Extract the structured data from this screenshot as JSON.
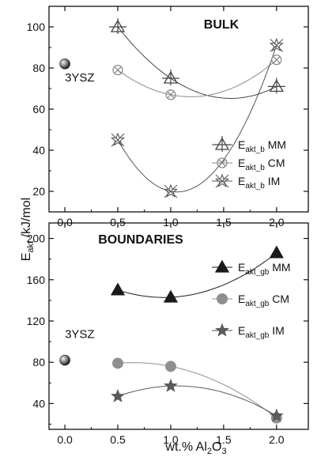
{
  "chart_data": [
    {
      "type": "line",
      "title": "BULK",
      "xlabel": "wt.% Al2O3",
      "ylabel": "Eakt /kJ/mol",
      "xlim": [
        -0.15,
        2.3
      ],
      "ylim": [
        10,
        110
      ],
      "x_ticks": [
        0.0,
        0.5,
        1.0,
        1.5,
        2.0
      ],
      "y_ticks": [
        20,
        40,
        60,
        80,
        100
      ],
      "legend_position": "bottom-right",
      "annotation": {
        "text": "3YSZ",
        "x": 0.0,
        "y": 82,
        "marker": "sphere"
      },
      "series": [
        {
          "name": "Eakt_b MM",
          "label_main": "E",
          "label_sub": "akt_b",
          "label_tail": " MM",
          "marker": "triangle-open",
          "color": "#444444",
          "x": [
            0.5,
            1.0,
            2.0
          ],
          "values": [
            100,
            75,
            71
          ]
        },
        {
          "name": "Eakt_b CM",
          "label_main": "E",
          "label_sub": "akt_b",
          "label_tail": " CM",
          "marker": "circle-x-open",
          "color": "#8a8a8a",
          "x": [
            0.5,
            1.0,
            2.0
          ],
          "values": [
            79,
            67,
            84
          ]
        },
        {
          "name": "Eakt_b IM",
          "label_main": "E",
          "label_sub": "akt_b",
          "label_tail": " IM",
          "marker": "star-open",
          "color": "#555555",
          "x": [
            0.5,
            1.0,
            2.0
          ],
          "values": [
            45,
            20,
            91
          ]
        }
      ]
    },
    {
      "type": "line",
      "title": "BOUNDARIES",
      "xlabel": "wt.% Al2O3",
      "ylabel": "Eakt /kJ/mol",
      "xlim": [
        -0.15,
        2.3
      ],
      "ylim": [
        15,
        215
      ],
      "x_ticks": [
        0.0,
        0.5,
        1.0,
        1.5,
        2.0
      ],
      "y_ticks": [
        40,
        80,
        120,
        160,
        200
      ],
      "legend_position": "right",
      "annotation": {
        "text": "3YSZ",
        "x": 0.0,
        "y": 82,
        "marker": "sphere"
      },
      "series": [
        {
          "name": "Eakt_gb MM",
          "label_main": "E",
          "label_sub": "akt_gb",
          "label_tail": " MM",
          "marker": "triangle-filled",
          "color": "#1a1a1a",
          "x": [
            0.5,
            1.0,
            2.0
          ],
          "values": [
            150,
            143,
            186
          ]
        },
        {
          "name": "Eakt_gb CM",
          "label_main": "E",
          "label_sub": "akt_gb",
          "label_tail": " CM",
          "marker": "circle-filled",
          "color": "#8f8f8f",
          "x": [
            0.5,
            1.0,
            2.0
          ],
          "values": [
            79,
            76,
            26
          ]
        },
        {
          "name": "Eakt_gb IM",
          "label_main": "E",
          "label_sub": "akt_gb",
          "label_tail": " IM",
          "marker": "star-filled",
          "color": "#5a5a5a",
          "x": [
            0.5,
            1.0,
            2.0
          ],
          "values": [
            47,
            57,
            28
          ]
        }
      ]
    }
  ],
  "axis_titles": {
    "y_main": "E",
    "y_sub": "akt",
    "y_tail": " /kJ/mol",
    "x_main": "wt.% Al",
    "x_sub1": "2",
    "x_mid": "O",
    "x_sub2": "3"
  }
}
